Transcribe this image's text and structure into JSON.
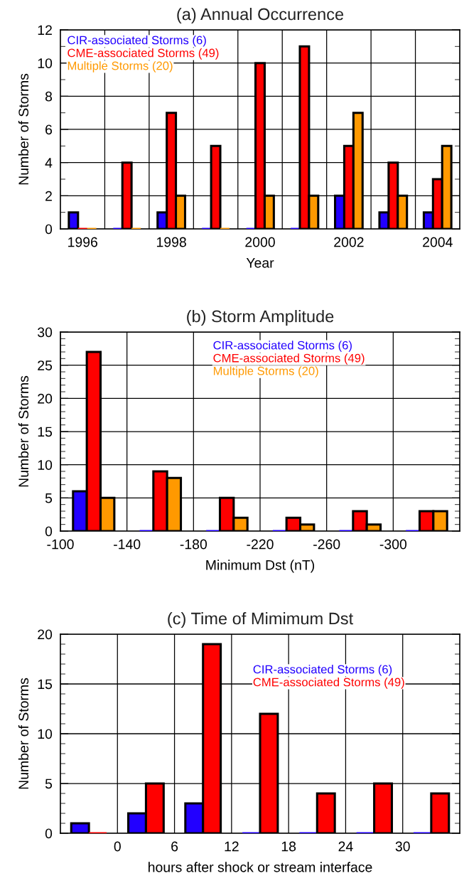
{
  "chart_data": [
    {
      "type": "bar",
      "title": "(a) Annual Occurrence",
      "xlabel": "Year",
      "ylabel": "Number of Storms",
      "categories": [
        "1996",
        null,
        "1998",
        null,
        "2000",
        null,
        "2002",
        null,
        "2004"
      ],
      "series": [
        {
          "name": "CIR-associated Storms (6)",
          "color": "#2200ff",
          "values": [
            1,
            0,
            1,
            0,
            0,
            0,
            2,
            1,
            1
          ]
        },
        {
          "name": "CME-associated Storms (49)",
          "color": "#ff0000",
          "values": [
            0,
            4,
            7,
            5,
            10,
            11,
            5,
            4,
            3
          ]
        },
        {
          "name": "Multiple Storms (20)",
          "color": "#ff9900",
          "values": [
            0,
            0,
            2,
            0,
            2,
            2,
            7,
            2,
            5
          ]
        }
      ],
      "ylim": [
        0,
        12
      ],
      "yticks": [
        0,
        2,
        4,
        6,
        8,
        10,
        12
      ],
      "grid": true,
      "legend": "top left"
    },
    {
      "type": "bar",
      "title": "(b) Storm Amplitude",
      "xlabel": "Minimum Dst (nT)",
      "ylabel": "Number of Storms",
      "x": [
        -120,
        -160,
        -200,
        -240,
        -280,
        -320
      ],
      "series": [
        {
          "name": "CIR-associated Storms (6)",
          "color": "#2200ff",
          "values": [
            6,
            0,
            0,
            0,
            0,
            0
          ]
        },
        {
          "name": "CME-associated Storms (49)",
          "color": "#ff0000",
          "values": [
            27,
            9,
            5,
            2,
            3,
            3
          ]
        },
        {
          "name": "Multiple Storms (20)",
          "color": "#ff9900",
          "values": [
            5,
            8,
            2,
            1,
            1,
            3
          ]
        }
      ],
      "xlim": [
        -100,
        -340
      ],
      "xticks": [
        -100,
        -140,
        -180,
        -220,
        -260,
        -300
      ],
      "ylim": [
        0,
        30
      ],
      "yticks": [
        0,
        5,
        10,
        15,
        20,
        25,
        30
      ],
      "grid": true,
      "legend": "top"
    },
    {
      "type": "bar",
      "title": "(c) Time of Mimimum Dst",
      "xlabel": "hours after shock or stream interface",
      "ylabel": "Number of Storms",
      "x": [
        -3,
        3,
        9,
        15,
        21,
        27,
        33
      ],
      "series": [
        {
          "name": "CIR-associated Storms (6)",
          "color": "#2200ff",
          "values": [
            1,
            2,
            3,
            0,
            0,
            0,
            0
          ]
        },
        {
          "name": "CME-associated Storms (49)",
          "color": "#ff0000",
          "values": [
            0,
            5,
            19,
            12,
            4,
            5,
            4
          ]
        }
      ],
      "xlim": [
        -6,
        36
      ],
      "xticks": [
        0,
        6,
        12,
        18,
        24,
        30
      ],
      "ylim": [
        0,
        20
      ],
      "yticks": [
        0,
        5,
        10,
        15,
        20
      ],
      "grid": true,
      "legend": "top right"
    }
  ]
}
